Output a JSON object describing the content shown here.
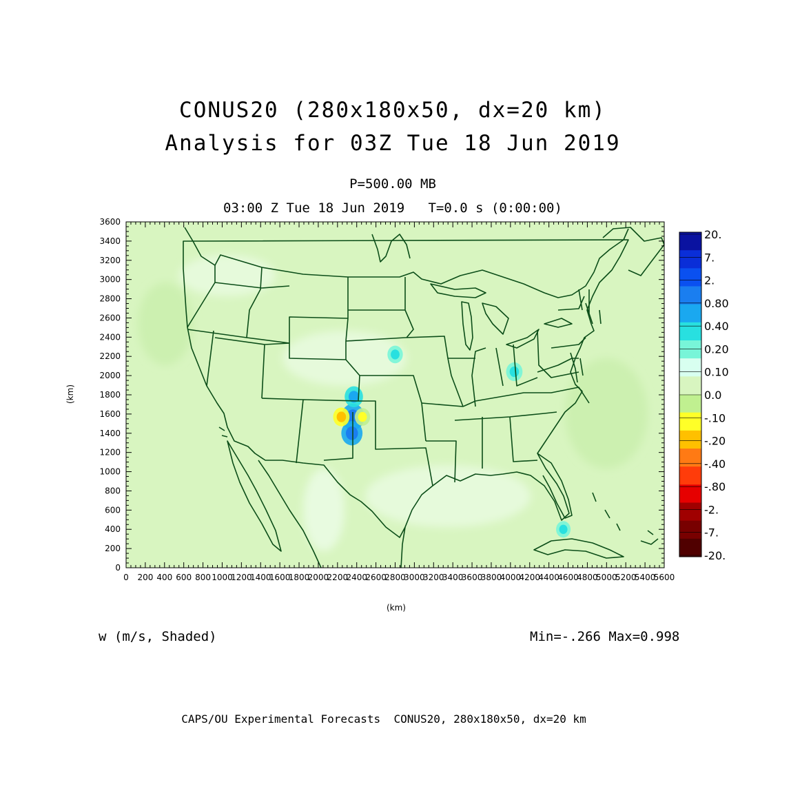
{
  "header": {
    "title_line1": "CONUS20 (280x180x50, dx=20 km)",
    "title_line2": "Analysis for 03Z Tue 18 Jun 2019",
    "level": "P=500.00 MB",
    "time_line": "03:00 Z Tue 18 Jun 2019   T=0.0 s (0:00:00)"
  },
  "map": {
    "background_color": "#d8f5c0",
    "boundary_color": "#0b4d18",
    "features": [
      {
        "name": "updraft-core-1",
        "x_km": 2360,
        "y_km": 1570,
        "w_ms": 0.6
      },
      {
        "name": "updraft-core-2",
        "x_km": 2350,
        "y_km": 1400,
        "w_ms": 0.5
      },
      {
        "name": "updraft-core-3",
        "x_km": 2370,
        "y_km": 1780,
        "w_ms": 0.35
      },
      {
        "name": "downdraft-1",
        "x_km": 2240,
        "y_km": 1570,
        "w_ms": -0.25
      },
      {
        "name": "downdraft-2",
        "x_km": 2460,
        "y_km": 1570,
        "w_ms": -0.2
      },
      {
        "name": "updraft-nebraska",
        "x_km": 2800,
        "y_km": 2220,
        "w_ms": 0.2
      },
      {
        "name": "updraft-ohio",
        "x_km": 4040,
        "y_km": 2040,
        "w_ms": 0.25
      },
      {
        "name": "updraft-carib",
        "x_km": 4550,
        "y_km": 400,
        "w_ms": 0.15
      }
    ]
  },
  "chart_data": {
    "type": "heatmap",
    "variable": "w (m/s, Shaded)",
    "xlabel": "(km)",
    "ylabel": "(km)",
    "xlim": [
      0,
      5600
    ],
    "ylim": [
      0,
      3600
    ],
    "x_ticks": [
      "0",
      "200",
      "400",
      "600",
      "800",
      "1000",
      "1200",
      "1400",
      "1600",
      "1800",
      "2000",
      "2200",
      "2400",
      "2600",
      "2800",
      "3000",
      "3200",
      "3400",
      "3600",
      "3800",
      "4000",
      "4200",
      "4400",
      "4600",
      "4800",
      "5000",
      "5200",
      "5400",
      "5600"
    ],
    "y_ticks": [
      "0",
      "200",
      "400",
      "600",
      "800",
      "1000",
      "1200",
      "1400",
      "1600",
      "1800",
      "2000",
      "2200",
      "2400",
      "2600",
      "2800",
      "3000",
      "3200",
      "3400",
      "3600"
    ],
    "min": "-.266",
    "max": "0.998",
    "minmax_text": "Min=-.266  Max=0.998"
  },
  "colorbar": {
    "labels": [
      "20.",
      "7.",
      "2.",
      "0.80",
      "0.40",
      "0.20",
      "0.10",
      "0.0",
      "-.10",
      "-.20",
      "-.40",
      "-.80",
      "-2.",
      "-7.",
      "-20."
    ],
    "colors": [
      "#0a12a0",
      "#0a2ed8",
      "#0a50f0",
      "#1a7ef0",
      "#1aa8f0",
      "#28e0e0",
      "#78f5d8",
      "#d8fff0",
      "#d8f5c0",
      "#c0f090",
      "#ffff28",
      "#ffc000",
      "#ff7a14",
      "#ff3c0a",
      "#e60000",
      "#a00000",
      "#780000",
      "#500000"
    ]
  },
  "footer": "CAPS/OU Experimental Forecasts  CONUS20, 280x180x50, dx=20 km"
}
